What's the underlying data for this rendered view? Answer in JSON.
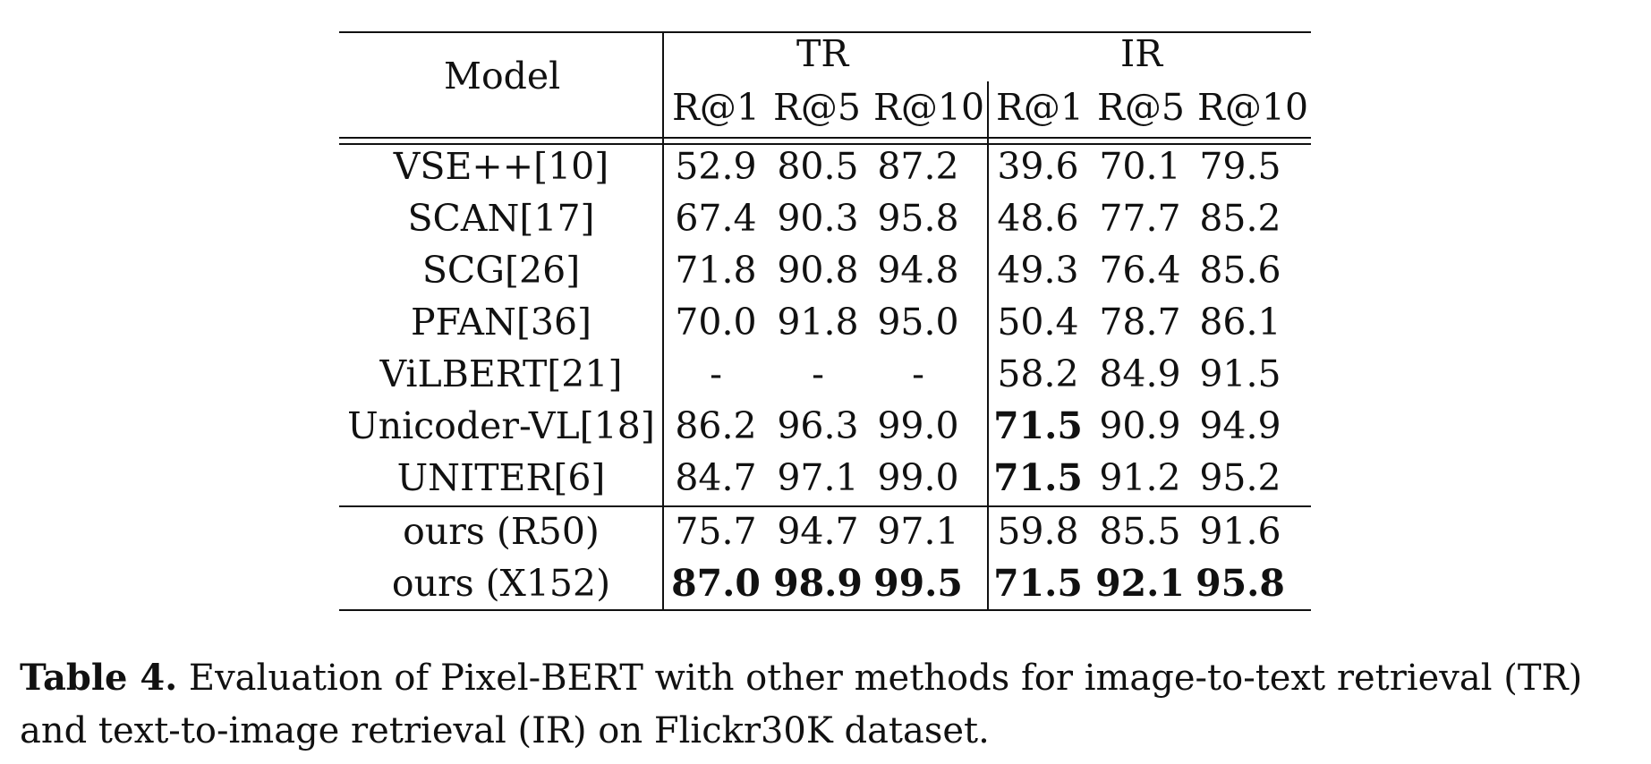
{
  "table": {
    "model_header": "Model",
    "group_headers": [
      "TR",
      "IR"
    ],
    "metric_headers": [
      "R@1",
      "R@5",
      "R@10",
      "R@1",
      "R@5",
      "R@10"
    ],
    "rows": [
      {
        "model": "VSE++[10]",
        "cells": [
          {
            "v": "52.9"
          },
          {
            "v": "80.5"
          },
          {
            "v": "87.2"
          },
          {
            "v": "39.6"
          },
          {
            "v": "70.1"
          },
          {
            "v": "79.5"
          }
        ]
      },
      {
        "model": "SCAN[17]",
        "cells": [
          {
            "v": "67.4"
          },
          {
            "v": "90.3"
          },
          {
            "v": "95.8"
          },
          {
            "v": "48.6"
          },
          {
            "v": "77.7"
          },
          {
            "v": "85.2"
          }
        ]
      },
      {
        "model": "SCG[26]",
        "cells": [
          {
            "v": "71.8"
          },
          {
            "v": "90.8"
          },
          {
            "v": "94.8"
          },
          {
            "v": "49.3"
          },
          {
            "v": "76.4"
          },
          {
            "v": "85.6"
          }
        ]
      },
      {
        "model": "PFAN[36]",
        "cells": [
          {
            "v": "70.0"
          },
          {
            "v": "91.8"
          },
          {
            "v": "95.0"
          },
          {
            "v": "50.4"
          },
          {
            "v": "78.7"
          },
          {
            "v": "86.1"
          }
        ]
      },
      {
        "model": "ViLBERT[21]",
        "cells": [
          {
            "v": "-"
          },
          {
            "v": "-"
          },
          {
            "v": "-"
          },
          {
            "v": "58.2"
          },
          {
            "v": "84.9"
          },
          {
            "v": "91.5"
          }
        ]
      },
      {
        "model": "Unicoder-VL[18]",
        "cells": [
          {
            "v": "86.2"
          },
          {
            "v": "96.3"
          },
          {
            "v": "99.0"
          },
          {
            "v": "71.5",
            "bold": true
          },
          {
            "v": "90.9"
          },
          {
            "v": "94.9"
          }
        ]
      },
      {
        "model": "UNITER[6]",
        "cells": [
          {
            "v": "84.7"
          },
          {
            "v": "97.1"
          },
          {
            "v": "99.0"
          },
          {
            "v": "71.5",
            "bold": true
          },
          {
            "v": "91.2"
          },
          {
            "v": "95.2"
          }
        ]
      },
      {
        "model": "ours (R50)",
        "cells": [
          {
            "v": "75.7"
          },
          {
            "v": "94.7"
          },
          {
            "v": "97.1"
          },
          {
            "v": "59.8"
          },
          {
            "v": "85.5"
          },
          {
            "v": "91.6"
          }
        ]
      },
      {
        "model": "ours (X152)",
        "cells": [
          {
            "v": "87.0",
            "bold": true
          },
          {
            "v": "98.9",
            "bold": true
          },
          {
            "v": "99.5",
            "bold": true
          },
          {
            "v": "71.5",
            "bold": true
          },
          {
            "v": "92.1",
            "bold": true
          },
          {
            "v": "95.8",
            "bold": true
          }
        ]
      }
    ]
  },
  "caption": {
    "label": "Table 4.",
    "text": "Evaluation of Pixel-BERT with other methods for image-to-text retrieval (TR) and text-to-image retrieval (IR) on Flickr30K dataset."
  }
}
